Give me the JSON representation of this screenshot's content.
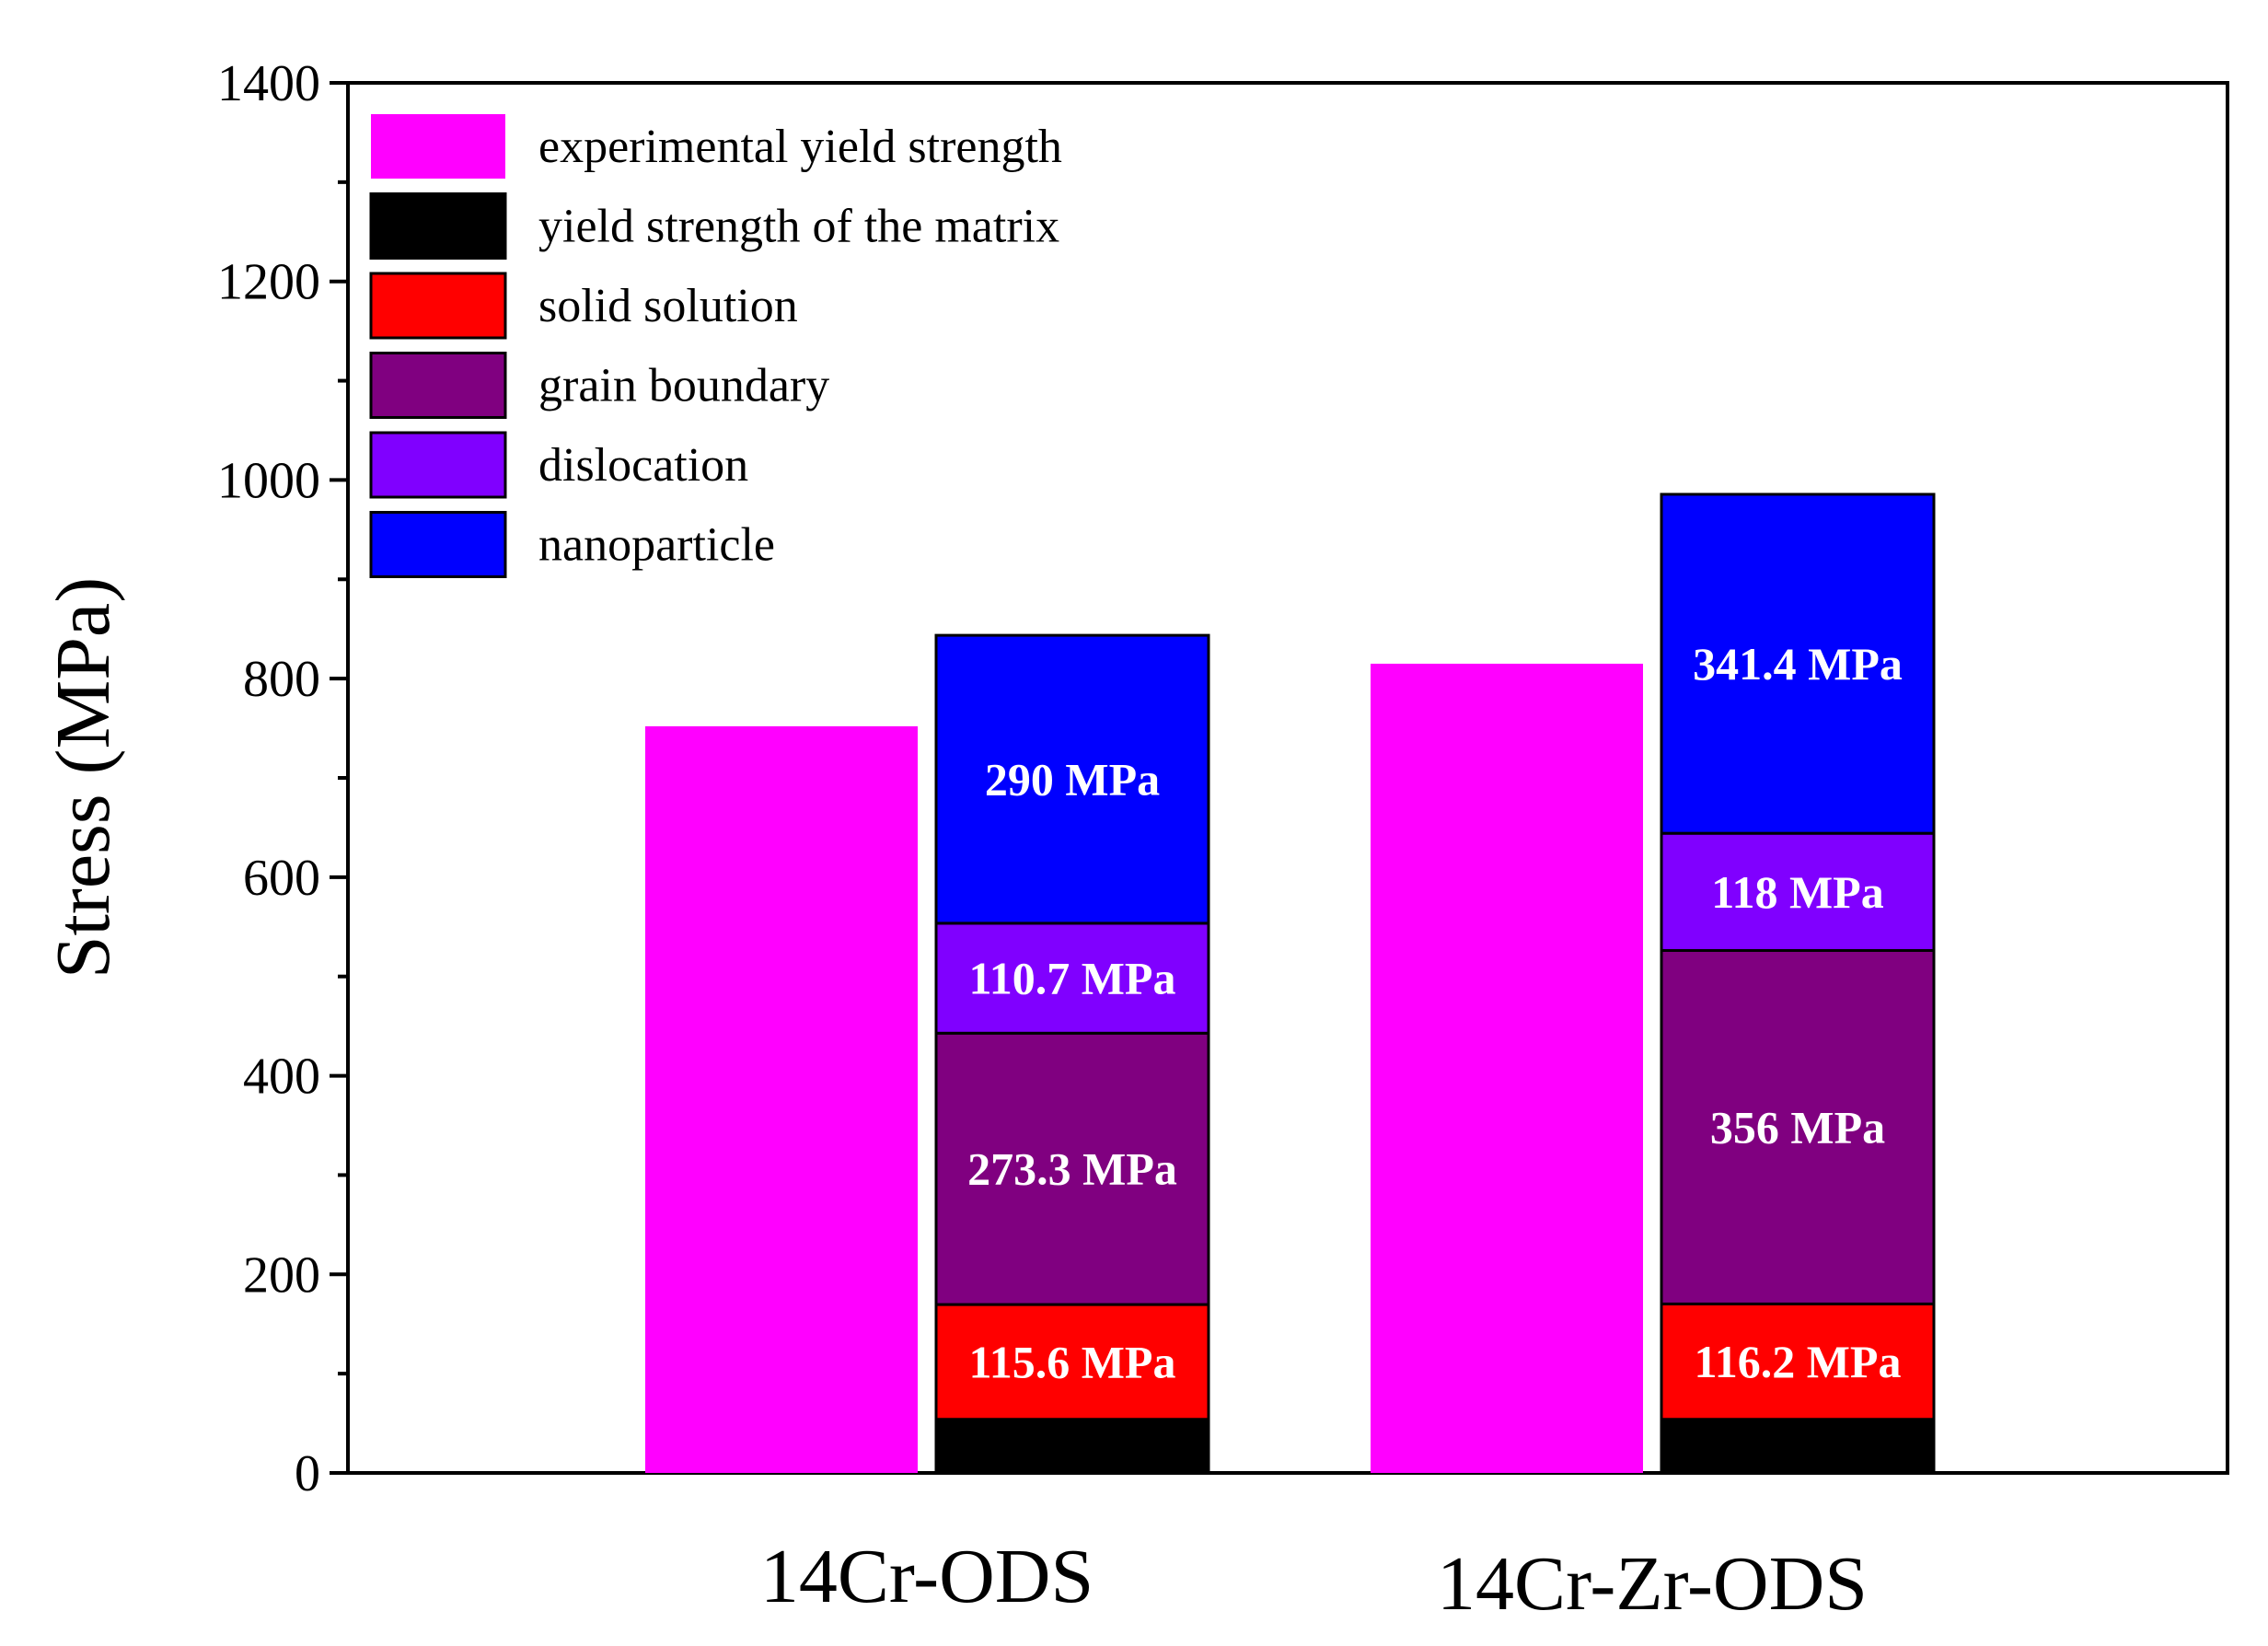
{
  "chart_data": {
    "type": "bar",
    "stacked_second_bar": true,
    "title": "",
    "xlabel": "",
    "ylabel": "Stress (MPa)",
    "ylim": [
      0,
      1400
    ],
    "yticks": [
      0,
      200,
      400,
      600,
      800,
      1000,
      1200,
      1400
    ],
    "categories": [
      "14Cr-ODS",
      "14Cr-Zr-ODS"
    ],
    "legend_position": "top-left",
    "series": [
      {
        "name": "experimental yield strength",
        "color": "#ff00ff",
        "values": [
          752,
          815
        ]
      },
      {
        "name": "yield strength of the matrix",
        "color": "#000000",
        "values": [
          54,
          54
        ]
      },
      {
        "name": "solid solution",
        "color": "#ff0000",
        "values": [
          115.6,
          116.2
        ]
      },
      {
        "name": "grain boundary",
        "color": "#800080",
        "values": [
          273.3,
          356
        ]
      },
      {
        "name": "dislocation",
        "color": "#8000ff",
        "values": [
          110.7,
          118
        ]
      },
      {
        "name": "nanoparticle",
        "color": "#0000ff",
        "values": [
          290,
          341.4
        ]
      }
    ],
    "data_labels": [
      [
        "",
        "115.6 MPa",
        "273.3 MPa",
        "110.7 MPa",
        "290 MPa"
      ],
      [
        "",
        "116.2 MPa",
        "356 MPa",
        "118 MPa",
        "341.4 MPa"
      ]
    ]
  }
}
